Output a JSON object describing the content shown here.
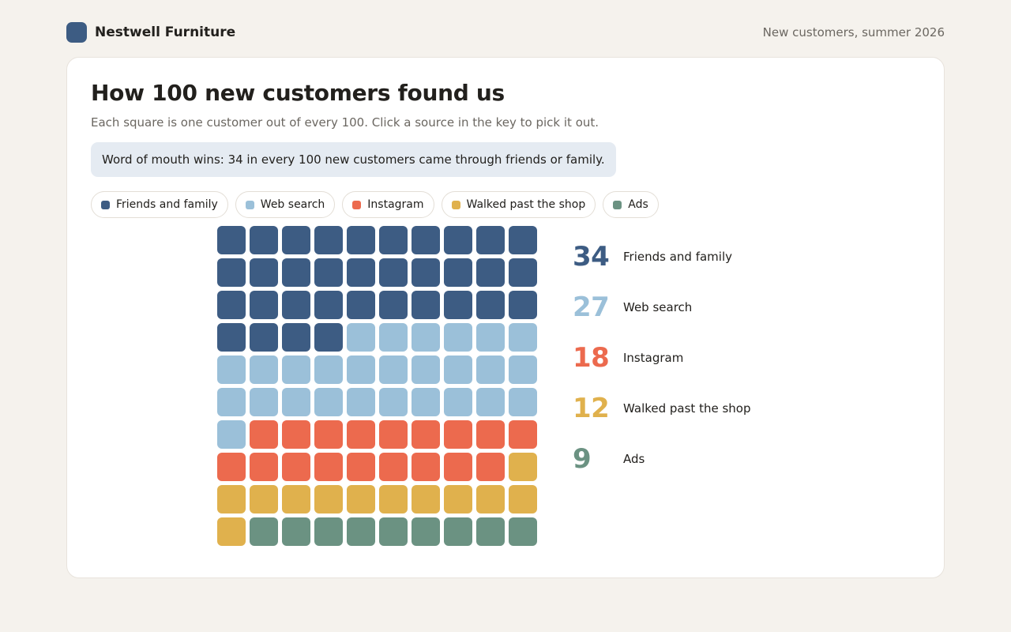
{
  "header": {
    "brand_name": "Nestwell Furniture",
    "period_label": "New customers, summer 2026"
  },
  "card": {
    "title": "How 100 new customers found us",
    "subtitle": "Each square is one customer out of every 100. Click a source in the key to pick it out.",
    "callout": "Word of mouth wins: 34 in every 100 new customers came through friends or family."
  },
  "colors": {
    "brand": "#3d5c83",
    "callout_bg": "#e5ebf2"
  },
  "chart_data": {
    "type": "waffle",
    "total": 100,
    "grid": [
      10,
      10
    ],
    "series": [
      {
        "name": "Friends and family",
        "value": 34,
        "color": "#3d5c83"
      },
      {
        "name": "Web search",
        "value": 27,
        "color": "#9bc0d9"
      },
      {
        "name": "Instagram",
        "value": 18,
        "color": "#ec6a4e"
      },
      {
        "name": "Walked past the shop",
        "value": 12,
        "color": "#e0b14d"
      },
      {
        "name": "Ads",
        "value": 9,
        "color": "#6b9282"
      }
    ]
  }
}
